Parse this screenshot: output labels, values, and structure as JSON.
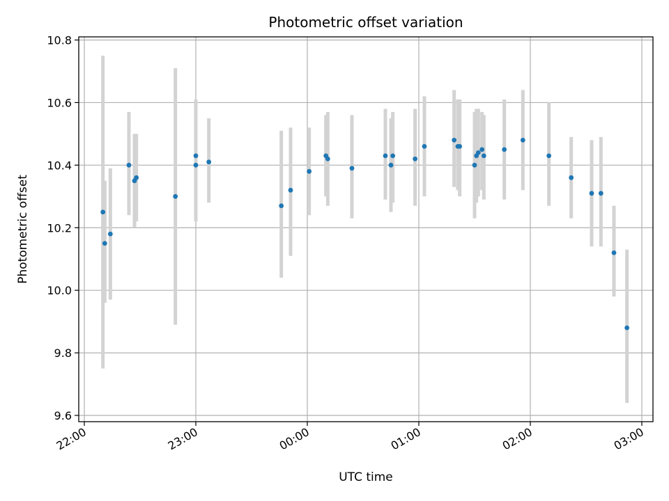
{
  "chart_data": {
    "type": "scatter",
    "title": "Photometric offset variation",
    "xlabel": "UTC time",
    "ylabel": "Photometric offset",
    "x_unit": "UTC time (HH:MM, 22:00 to 03:00 across midnight)",
    "xlim": [
      "21:57",
      "03:06"
    ],
    "ylim": [
      9.58,
      10.81
    ],
    "x_ticks": [
      "22:00",
      "23:00",
      "00:00",
      "01:00",
      "02:00",
      "03:00"
    ],
    "y_ticks": [
      9.6,
      9.8,
      10.0,
      10.2,
      10.4,
      10.6,
      10.8
    ],
    "y_tick_labels": [
      "9.6",
      "9.8",
      "10.0",
      "10.2",
      "10.4",
      "10.6",
      "10.8"
    ],
    "grid": true,
    "colors": {
      "points": "#1f77b4",
      "error_bars": "#d3d3d3",
      "grid": "#b0b0b0"
    },
    "points": [
      {
        "t": "22:10",
        "y": 10.25,
        "lo": 9.75,
        "hi": 10.75
      },
      {
        "t": "22:11",
        "y": 10.15,
        "lo": 9.96,
        "hi": 10.35
      },
      {
        "t": "22:14",
        "y": 10.18,
        "lo": 9.97,
        "hi": 10.39
      },
      {
        "t": "22:24",
        "y": 10.4,
        "lo": 10.24,
        "hi": 10.57
      },
      {
        "t": "22:27",
        "y": 10.35,
        "lo": 10.2,
        "hi": 10.5
      },
      {
        "t": "22:28",
        "y": 10.36,
        "lo": 10.22,
        "hi": 10.5
      },
      {
        "t": "22:49",
        "y": 10.3,
        "lo": 9.89,
        "hi": 10.71
      },
      {
        "t": "23:00",
        "y": 10.43,
        "lo": 10.25,
        "hi": 10.61
      },
      {
        "t": "23:00",
        "y": 10.4,
        "lo": 10.22,
        "hi": 10.58
      },
      {
        "t": "23:07",
        "y": 10.41,
        "lo": 10.28,
        "hi": 10.55
      },
      {
        "t": "23:46",
        "y": 10.27,
        "lo": 10.04,
        "hi": 10.51
      },
      {
        "t": "23:51",
        "y": 10.32,
        "lo": 10.11,
        "hi": 10.52
      },
      {
        "t": "00:01",
        "y": 10.38,
        "lo": 10.24,
        "hi": 10.52
      },
      {
        "t": "00:10",
        "y": 10.43,
        "lo": 10.3,
        "hi": 10.56
      },
      {
        "t": "00:11",
        "y": 10.42,
        "lo": 10.27,
        "hi": 10.57
      },
      {
        "t": "00:24",
        "y": 10.39,
        "lo": 10.23,
        "hi": 10.56
      },
      {
        "t": "00:42",
        "y": 10.43,
        "lo": 10.29,
        "hi": 10.58
      },
      {
        "t": "00:45",
        "y": 10.4,
        "lo": 10.25,
        "hi": 10.55
      },
      {
        "t": "00:46",
        "y": 10.43,
        "lo": 10.28,
        "hi": 10.57
      },
      {
        "t": "00:58",
        "y": 10.42,
        "lo": 10.27,
        "hi": 10.58
      },
      {
        "t": "01:03",
        "y": 10.46,
        "lo": 10.3,
        "hi": 10.62
      },
      {
        "t": "01:19",
        "y": 10.48,
        "lo": 10.33,
        "hi": 10.64
      },
      {
        "t": "01:21",
        "y": 10.46,
        "lo": 10.32,
        "hi": 10.61
      },
      {
        "t": "01:22",
        "y": 10.46,
        "lo": 10.3,
        "hi": 10.61
      },
      {
        "t": "01:30",
        "y": 10.4,
        "lo": 10.23,
        "hi": 10.57
      },
      {
        "t": "01:31",
        "y": 10.43,
        "lo": 10.28,
        "hi": 10.58
      },
      {
        "t": "01:32",
        "y": 10.44,
        "lo": 10.3,
        "hi": 10.58
      },
      {
        "t": "01:34",
        "y": 10.45,
        "lo": 10.32,
        "hi": 10.57
      },
      {
        "t": "01:35",
        "y": 10.43,
        "lo": 10.29,
        "hi": 10.56
      },
      {
        "t": "01:46",
        "y": 10.45,
        "lo": 10.29,
        "hi": 10.61
      },
      {
        "t": "01:56",
        "y": 10.48,
        "lo": 10.32,
        "hi": 10.64
      },
      {
        "t": "02:10",
        "y": 10.43,
        "lo": 10.27,
        "hi": 10.6
      },
      {
        "t": "02:22",
        "y": 10.36,
        "lo": 10.23,
        "hi": 10.49
      },
      {
        "t": "02:33",
        "y": 10.31,
        "lo": 10.14,
        "hi": 10.48
      },
      {
        "t": "02:38",
        "y": 10.31,
        "lo": 10.14,
        "hi": 10.49
      },
      {
        "t": "02:45",
        "y": 10.12,
        "lo": 9.98,
        "hi": 10.27
      },
      {
        "t": "02:52",
        "y": 9.88,
        "lo": 9.64,
        "hi": 10.13
      }
    ]
  }
}
